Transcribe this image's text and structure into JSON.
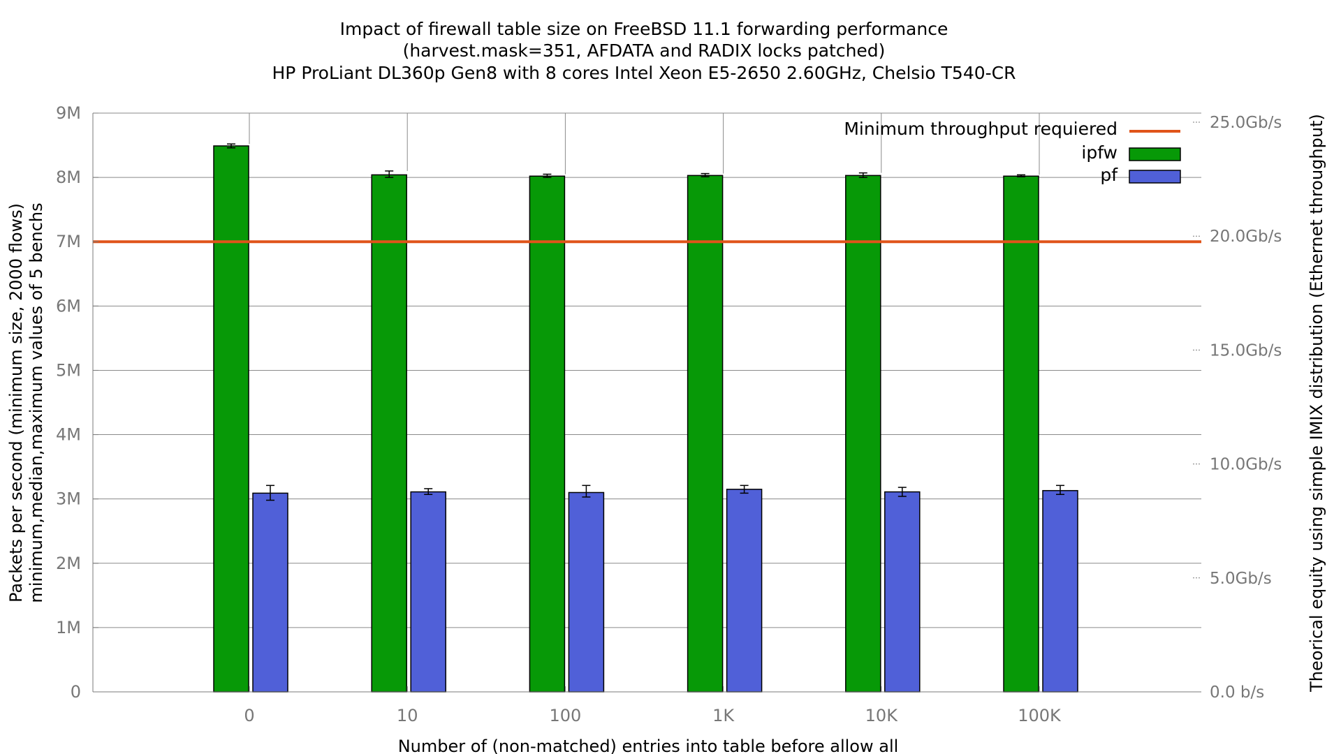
{
  "chart_data": {
    "type": "bar",
    "title": [
      "Impact of firewall table size on FreeBSD 11.1 forwarding performance",
      "(harvest.mask=351, AFDATA and RADIX locks patched)",
      "HP ProLiant DL360p Gen8 with 8 cores Intel Xeon E5-2650 2.60GHz, Chelsio T540-CR"
    ],
    "xlabel": "Number of (non-matched) entries into table before allow all",
    "ylabel": [
      "Packets per second (minimum size, 2000 flows)",
      "minimum,median,maximum values of 5 benchs"
    ],
    "y2label": "Theorical equity using simple IMIX distribution (Ethernet throughput)",
    "categories": [
      "0",
      "10",
      "100",
      "1K",
      "10K",
      "100K"
    ],
    "ylim": [
      0,
      9000000
    ],
    "yticks": [
      {
        "value": 0,
        "label": "0"
      },
      {
        "value": 1000000,
        "label": "1M"
      },
      {
        "value": 2000000,
        "label": "2M"
      },
      {
        "value": 3000000,
        "label": "3M"
      },
      {
        "value": 4000000,
        "label": "4M"
      },
      {
        "value": 5000000,
        "label": "5M"
      },
      {
        "value": 6000000,
        "label": "6M"
      },
      {
        "value": 7000000,
        "label": "7M"
      },
      {
        "value": 8000000,
        "label": "8M"
      },
      {
        "value": 9000000,
        "label": "9M"
      }
    ],
    "y2ticks": [
      {
        "value": 0,
        "label": "0.0 b/s"
      },
      {
        "value": 5,
        "label": "5.0Gb/s"
      },
      {
        "value": 10,
        "label": "10.0Gb/s"
      },
      {
        "value": 15,
        "label": "15.0Gb/s"
      },
      {
        "value": 20,
        "label": "20.0Gb/s"
      },
      {
        "value": 25,
        "label": "25.0Gb/s"
      }
    ],
    "y2lim": [
      0,
      25.4
    ],
    "series": [
      {
        "name": "ipfw",
        "color": "#079907",
        "values": [
          8490000,
          8040000,
          8020000,
          8030000,
          8030000,
          8020000
        ],
        "min": [
          8460000,
          8000000,
          8000000,
          8010000,
          8000000,
          8010000
        ],
        "max": [
          8520000,
          8100000,
          8050000,
          8060000,
          8070000,
          8040000
        ]
      },
      {
        "name": "pf",
        "color": "#5060d8",
        "values": [
          3090000,
          3110000,
          3100000,
          3150000,
          3110000,
          3130000
        ],
        "min": [
          2980000,
          3070000,
          3030000,
          3090000,
          3040000,
          3070000
        ],
        "max": [
          3210000,
          3160000,
          3210000,
          3210000,
          3180000,
          3210000
        ]
      }
    ],
    "reference_line": {
      "name": "Minimum throughput requiered",
      "value": 7000000,
      "color": "#e0541a"
    },
    "legend_position": "top-right",
    "grid": true
  }
}
